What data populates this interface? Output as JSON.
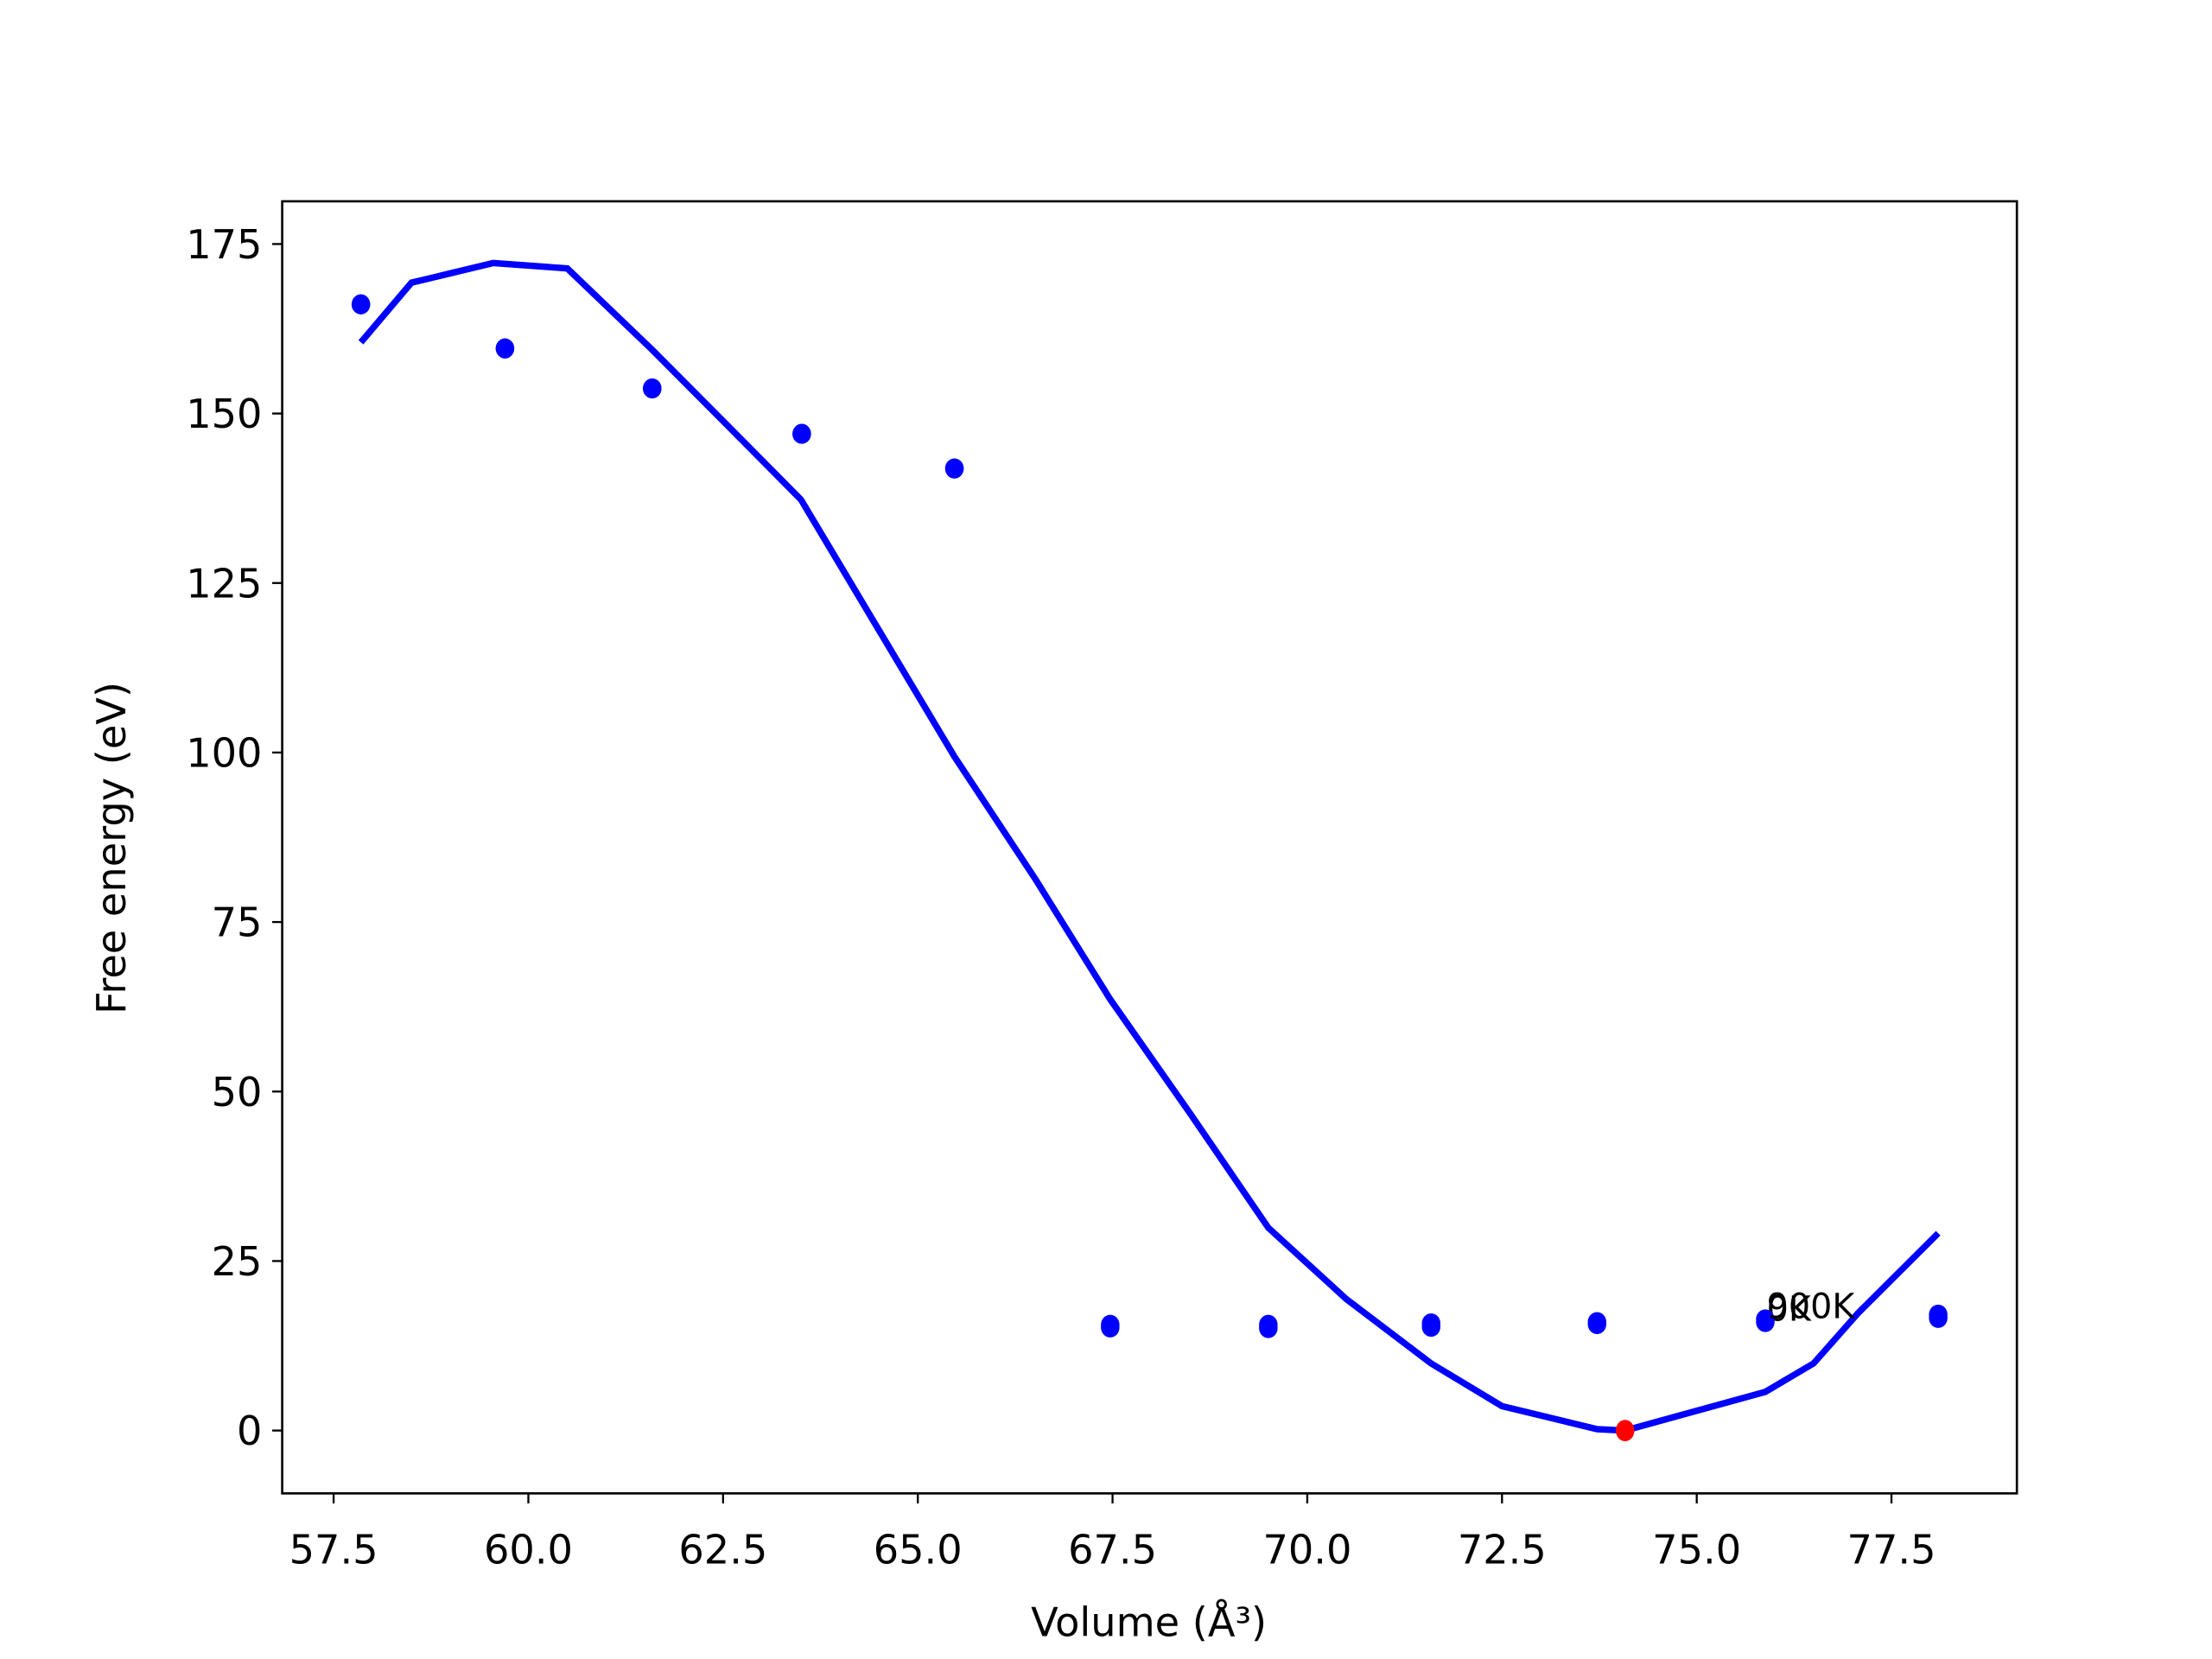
{
  "chart_data": {
    "type": "scatter",
    "xlabel": "Volume (Å³)",
    "ylabel": "Free energy (eV)",
    "xlim": [
      56.84,
      79.11
    ],
    "ylim": [
      -9.27,
      181.3
    ],
    "xticks": [
      57.5,
      {
        "value": 60,
        "label": "60.0"
      },
      62.5,
      {
        "value": 65,
        "label": "65.0"
      },
      67.5,
      {
        "value": 70,
        "label": "70.0"
      },
      72.5,
      {
        "value": 75,
        "label": "75.0"
      },
      77.5
    ],
    "yticks": [
      0,
      25,
      50,
      75,
      100,
      125,
      150,
      175
    ],
    "x": [
      57.85,
      59.7,
      61.59,
      63.51,
      65.47,
      67.47,
      69.5,
      71.59,
      73.72,
      75.88,
      78.1
    ],
    "series": [
      {
        "name": "0K",
        "color": "#0000ff",
        "values": [
          166.1,
          159.6,
          153.7,
          147.0,
          141.9,
          15.2,
          15.1,
          15.3,
          15.7,
          16.0,
          16.6
        ]
      },
      {
        "name": "900K",
        "color": "#0000ff",
        "values": [
          166.1,
          159.6,
          153.7,
          147.0,
          141.9,
          15.6,
          15.6,
          15.8,
          16.0,
          16.4,
          17.1
        ]
      }
    ],
    "curve": {
      "color": "#0000ff",
      "x": [
        57.85,
        58.5,
        59.55,
        60.5,
        61.59,
        62.5,
        63.5,
        65.47,
        66.5,
        67.47,
        68.5,
        69.5,
        70.5,
        71.59,
        72.5,
        73.72,
        74.08,
        75.88,
        76.5,
        77.07,
        78.1
      ],
      "values": [
        160.5,
        169.3,
        172.2,
        171.4,
        159.4,
        148.9,
        137.3,
        99.4,
        81.5,
        63.6,
        46.7,
        29.9,
        19.4,
        9.9,
        3.6,
        0.2,
        0,
        5.7,
        9.9,
        17.3,
        29.1
      ]
    },
    "minimum": {
      "x": 74.08,
      "y": 0,
      "color": "#ff0000"
    }
  }
}
